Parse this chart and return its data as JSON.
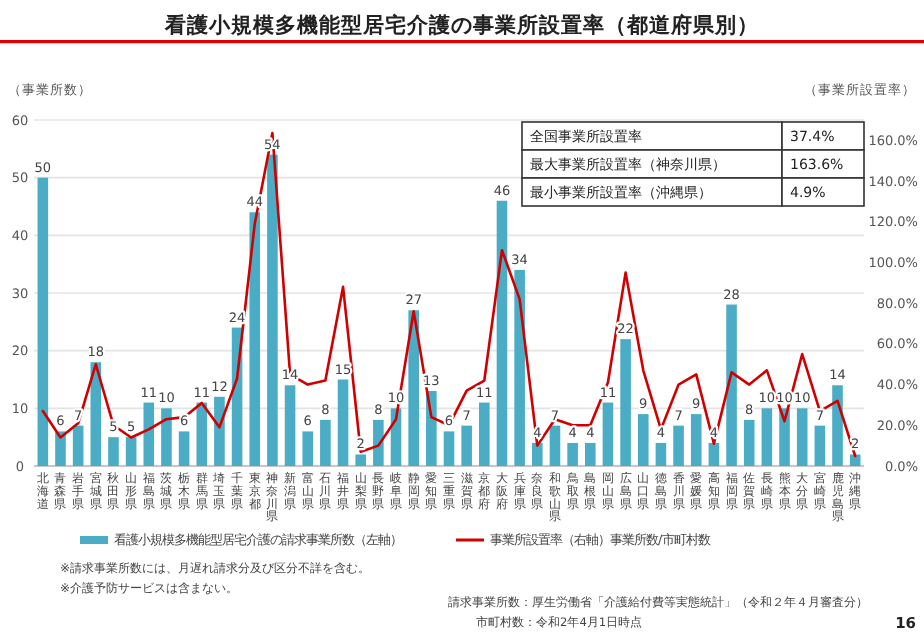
{
  "chart_data": {
    "type": "bar",
    "title": "看護小規模多機能型居宅介護の事業所設置率（都道府県別）",
    "ylabel": "（事業所数）",
    "y2label": "（事業所設置率）",
    "categories": [
      "北海道",
      "青森県",
      "岩手県",
      "宮城県",
      "秋田県",
      "山形県",
      "福島県",
      "茨城県",
      "栃木県",
      "群馬県",
      "埼玉県",
      "千葉県",
      "東京都",
      "神奈川県",
      "新潟県",
      "富山県",
      "石川県",
      "福井県",
      "山梨県",
      "長野県",
      "岐阜県",
      "静岡県",
      "愛知県",
      "三重県",
      "滋賀県",
      "京都府",
      "大阪府",
      "兵庫県",
      "奈良県",
      "和歌山県",
      "鳥取県",
      "島根県",
      "岡山県",
      "広島県",
      "山口県",
      "徳島県",
      "香川県",
      "愛媛県",
      "高知県",
      "福岡県",
      "佐賀県",
      "長崎県",
      "熊本県",
      "大分県",
      "宮崎県",
      "鹿児島県",
      "沖縄県"
    ],
    "series": [
      {
        "name": "看護小規模多機能型居宅介護の請求事業所数（左軸）",
        "color": "#4bacc6",
        "values": [
          50,
          6,
          7,
          18,
          5,
          5,
          11,
          10,
          6,
          11,
          12,
          24,
          44,
          54,
          14,
          6,
          8,
          15,
          2,
          8,
          10,
          27,
          13,
          6,
          7,
          11,
          46,
          34,
          4,
          7,
          4,
          4,
          11,
          22,
          9,
          4,
          7,
          9,
          4,
          28,
          8,
          10,
          10,
          10,
          7,
          14,
          2
        ],
        "value_labels": [
          "50",
          "6",
          "7",
          "18",
          "5",
          "5",
          "11",
          "10",
          "6",
          "11",
          "12",
          "24",
          "44",
          "54",
          "14",
          "6",
          "8",
          "15",
          "2",
          "8",
          "10",
          "27",
          "13",
          "6",
          "7",
          "11",
          "46",
          "34",
          "4",
          "7",
          "4",
          "4",
          "11",
          "22",
          "9",
          "4",
          "7",
          "9",
          "4",
          "28",
          "8",
          "10",
          "10",
          "10",
          "7",
          "14",
          "2"
        ]
      },
      {
        "name": "事業所設置率（右軸）事業所数/市町村数",
        "type": "line",
        "axis": "y2",
        "color": "#d00000",
        "values": [
          27,
          14,
          21,
          50,
          20,
          14,
          18,
          23,
          24,
          31,
          19,
          43,
          119,
          163.6,
          45,
          40,
          42,
          88,
          7,
          10,
          23,
          76,
          24,
          20,
          37,
          42,
          106,
          82,
          10,
          23,
          20,
          20,
          41,
          95,
          47,
          18,
          40,
          45,
          11,
          46,
          40,
          47,
          22,
          55,
          27,
          32,
          4.9
        ]
      }
    ],
    "ylim": [
      0,
      60
    ],
    "yticks": [
      0,
      10,
      20,
      30,
      40,
      50,
      60
    ],
    "y2lim": [
      0,
      170
    ],
    "y2ticks": [
      {
        "value": 0,
        "label": "0.0%"
      },
      {
        "value": 20,
        "label": "20.0%"
      },
      {
        "value": 40,
        "label": "40.0%"
      },
      {
        "value": 60,
        "label": "60.0%"
      },
      {
        "value": 80,
        "label": "80.0%"
      },
      {
        "value": 100,
        "label": "100.0%"
      },
      {
        "value": 120,
        "label": "120.0%"
      },
      {
        "value": 140,
        "label": "140.0%"
      },
      {
        "value": 160,
        "label": "160.0%"
      }
    ],
    "grid": "y",
    "legend": "bottom",
    "annotations": [
      "全国事業所設置率",
      "37.4%",
      "最大事業所設置率（神奈川県）",
      "163.6%",
      "最小事業所設置率（沖縄県）",
      "4.9%",
      "※請求事業所数には、月遅れ請求分及び区分不詳を含む。",
      "※介護予防サービスは含まない。",
      "請求事業所数：厚生労働省「介護給付費等実態統計」（令和２年４月審査分）",
      "市町村数：令和2年4月1日時点",
      "16"
    ]
  }
}
